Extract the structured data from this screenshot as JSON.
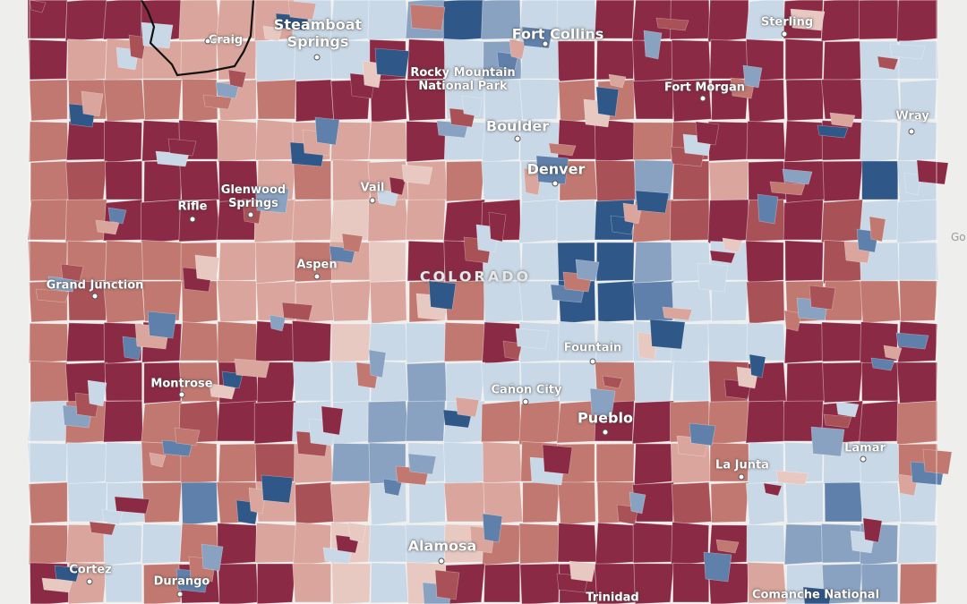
{
  "map": {
    "state_label": "COLORADO",
    "fill_colors": {
      "deep_red": "#8a2a45",
      "red": "#a85258",
      "mid_red": "#c07870",
      "light_red": "#d9a59c",
      "pale": "#e7c9c2",
      "light_blue": "#c9d8e6",
      "mid_blue": "#8aa2c1",
      "blue": "#5f80aa",
      "deep_blue": "#2f5787"
    },
    "cities": [
      {
        "name": "Steamboat\nSprings",
        "size": "lg"
      },
      {
        "name": "Craig",
        "size": "sm"
      },
      {
        "name": "Fort Collins",
        "size": "lg"
      },
      {
        "name": "Rocky Mountain\nNational Park",
        "size": "sm"
      },
      {
        "name": "Sterling",
        "size": "sm"
      },
      {
        "name": "Fort Morgan",
        "size": "sm"
      },
      {
        "name": "Boulder",
        "size": "lg"
      },
      {
        "name": "Denver",
        "size": "lg"
      },
      {
        "name": "Wray",
        "size": "sm"
      },
      {
        "name": "Vail",
        "size": "sm"
      },
      {
        "name": "Glenwood\nSprings",
        "size": "sm"
      },
      {
        "name": "Rifle",
        "size": "sm"
      },
      {
        "name": "Aspen",
        "size": "sm"
      },
      {
        "name": "Grand Junction",
        "size": "sm"
      },
      {
        "name": "Fountain",
        "size": "sm"
      },
      {
        "name": "Montrose",
        "size": "sm"
      },
      {
        "name": "Cañon City",
        "size": "sm"
      },
      {
        "name": "Pueblo",
        "size": "lg"
      },
      {
        "name": "Lamar",
        "size": "sm"
      },
      {
        "name": "La Junta",
        "size": "sm"
      },
      {
        "name": "Alamosa",
        "size": "lg"
      },
      {
        "name": "Cortez",
        "size": "sm"
      },
      {
        "name": "Durango",
        "size": "sm"
      },
      {
        "name": "Trinidad",
        "size": "sm"
      },
      {
        "name": "Comanche National",
        "size": "sm"
      },
      {
        "name": "Go",
        "size": "sm"
      }
    ]
  }
}
